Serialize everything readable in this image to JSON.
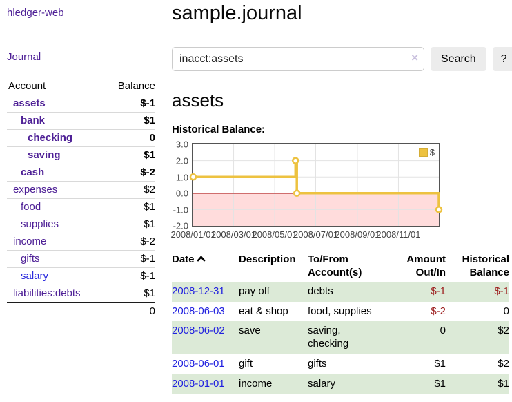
{
  "app": {
    "title": "hledger-web"
  },
  "sidebar": {
    "nav_journal": "Journal",
    "accounts_table": {
      "headers": {
        "account": "Account",
        "balance": "Balance"
      },
      "rows": [
        {
          "name": "assets",
          "depth": 1,
          "bold": true,
          "balance": "$-1",
          "balance_tone": "negative-strong"
        },
        {
          "name": "bank",
          "depth": 2,
          "bold": true,
          "balance": "$1",
          "balance_tone": "normal"
        },
        {
          "name": "checking",
          "depth": 3,
          "bold": true,
          "balance": "0",
          "balance_tone": "normal"
        },
        {
          "name": "saving",
          "depth": 3,
          "bold": true,
          "balance": "$1",
          "balance_tone": "normal"
        },
        {
          "name": "cash",
          "depth": 2,
          "bold": true,
          "balance": "$-2",
          "balance_tone": "negative-strong"
        },
        {
          "name": "expenses",
          "depth": 1,
          "bold": false,
          "balance": "$2",
          "balance_tone": "normal"
        },
        {
          "name": "food",
          "depth": 2,
          "bold": false,
          "balance": "$1",
          "balance_tone": "normal"
        },
        {
          "name": "supplies",
          "depth": 2,
          "bold": false,
          "balance": "$1",
          "balance_tone": "normal"
        },
        {
          "name": "income",
          "depth": 1,
          "bold": false,
          "balance": "$-2",
          "balance_tone": "negative-soft"
        },
        {
          "name": "gifts",
          "depth": 2,
          "bold": false,
          "balance": "$-1",
          "balance_tone": "negative-soft"
        },
        {
          "name": "salary",
          "depth": 2,
          "bold": false,
          "balance": "$-1",
          "balance_tone": "negative-soft"
        },
        {
          "name": "liabilities:debts",
          "depth": 1,
          "bold": false,
          "balance": "$1",
          "balance_tone": "normal"
        }
      ],
      "total": "0"
    }
  },
  "header": {
    "title": "sample.journal"
  },
  "search": {
    "value": "inacct:assets",
    "clear_icon": "×",
    "button_label": "Search",
    "help_label": "?"
  },
  "account_page": {
    "title": "assets"
  },
  "chart_data": {
    "type": "line",
    "subtype": "step",
    "title": "Historical Balance:",
    "legend": [
      {
        "label": "$",
        "color": "#edc240"
      }
    ],
    "legend_position": "top-right",
    "grid": true,
    "x_range": [
      "2008/01/01",
      "2008/12/31"
    ],
    "y_range": [
      -2,
      3
    ],
    "x_ticks": [
      {
        "label": "2008/01/01",
        "date": "2008/01/01"
      },
      {
        "label": "2008/03/01",
        "date": "2008/03/01"
      },
      {
        "label": "2008/05/01",
        "date": "2008/05/01"
      },
      {
        "label": "2008/07/01",
        "date": "2008/07/01"
      },
      {
        "label": "2008/09/01",
        "date": "2008/09/01"
      },
      {
        "label": "2008/11/01",
        "date": "2008/11/01"
      }
    ],
    "y_ticks": [
      {
        "label": "3.0",
        "value": 3
      },
      {
        "label": "2.0",
        "value": 2
      },
      {
        "label": "1.0",
        "value": 1
      },
      {
        "label": "0.0",
        "value": 0
      },
      {
        "label": "-1.0",
        "value": -1
      },
      {
        "label": "-2.0",
        "value": -2
      }
    ],
    "series": [
      {
        "name": "$",
        "color": "#edc240",
        "points": [
          [
            "2008/01/01",
            1
          ],
          [
            "2008/06/01",
            2
          ],
          [
            "2008/06/03",
            0
          ],
          [
            "2008/12/31",
            -1
          ]
        ]
      }
    ],
    "zero_line_color": "#a00000",
    "negative_region_color": "#ffdcdc",
    "gridline_color": "#e3e3e3"
  },
  "register_table": {
    "headers": [
      "Date",
      "Description",
      "To/From Account(s)",
      "Amount Out/In",
      "Historical Balance"
    ],
    "sort": {
      "column": "Date",
      "direction": "ascending"
    },
    "rows": [
      {
        "date": "2008-12-31",
        "description": "pay off",
        "accounts": "debts",
        "amount": "$-1",
        "balance": "$-1"
      },
      {
        "date": "2008-06-03",
        "description": "eat & shop",
        "accounts": "food, supplies",
        "amount": "$-2",
        "balance": "0"
      },
      {
        "date": "2008-06-02",
        "description": "save",
        "accounts": "saving, checking",
        "amount": "0",
        "balance": "$2"
      },
      {
        "date": "2008-06-01",
        "description": "gift",
        "accounts": "gifts",
        "amount": "$1",
        "balance": "$2"
      },
      {
        "date": "2008-01-01",
        "description": "income",
        "accounts": "salary",
        "amount": "$1",
        "balance": "$1"
      }
    ]
  }
}
